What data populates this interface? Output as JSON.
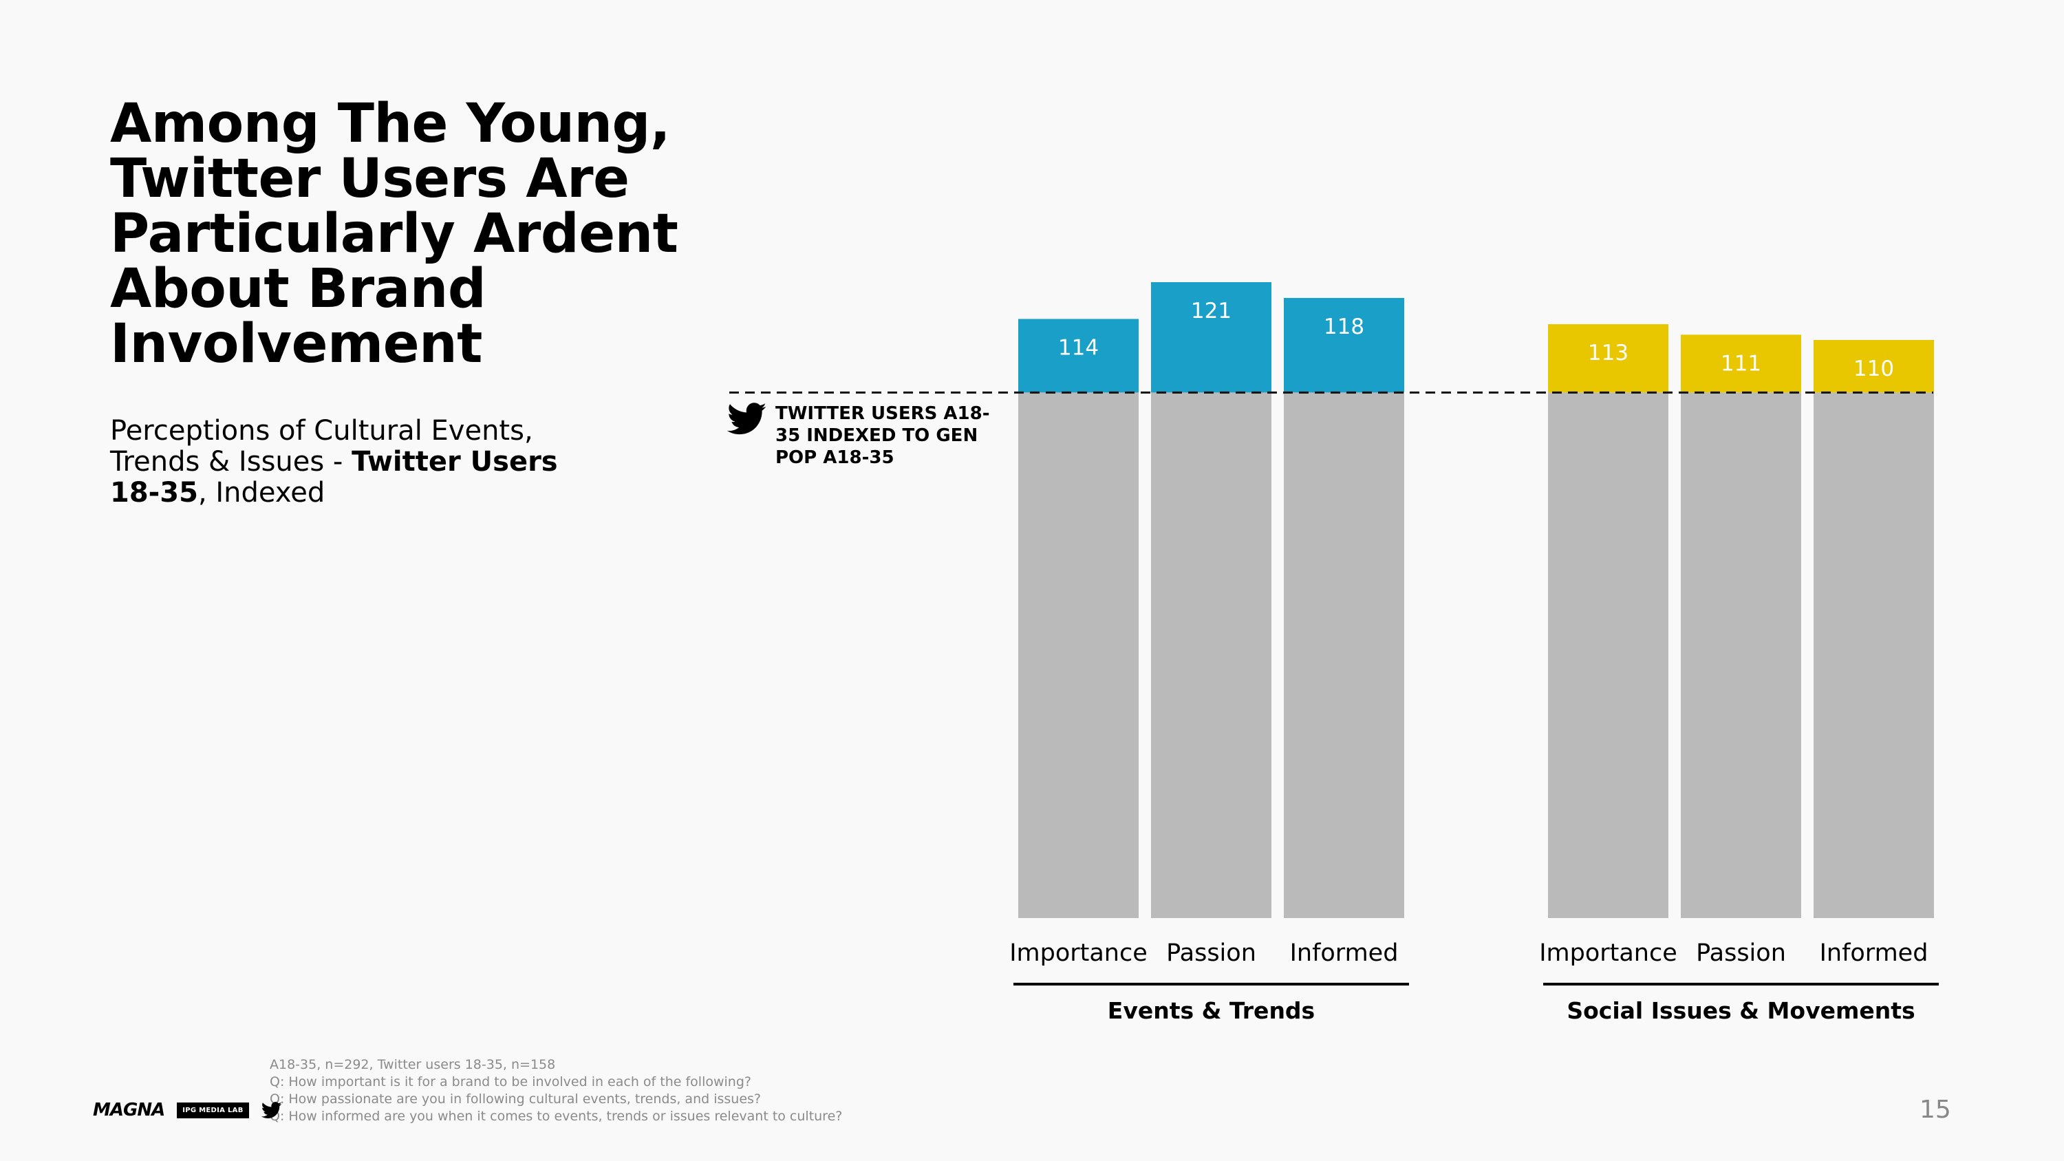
{
  "slide": {
    "title": "Among The Young, Twitter Users Are Particularly Ardent About Brand Involvement",
    "subtitle_part1": "Perceptions of Cultural Events, Trends & Issues - ",
    "subtitle_bold": "Twitter Users 18-35",
    "subtitle_part2": ", Indexed",
    "baseline_label": "TWITTER USERS A18-35 INDEXED TO GEN POP A18-35",
    "footer_notes": [
      "A18-35, n=292, Twitter users 18-35, n=158",
      "Q: How important is it for a brand to be involved in each of the following?",
      "Q: How passionate are you in following cultural events, trends, and issues?",
      "Q: How informed are you when it comes to events, trends or issues relevant to culture?"
    ],
    "logo_magna": "MAGNA",
    "logo_ipg": "IPG MEDIA LAB",
    "page_number": "15"
  },
  "chart_data": {
    "type": "bar",
    "baseline": 100,
    "ylim": [
      0,
      121
    ],
    "colors": {
      "base": "#bababa",
      "events": "#1a9fc9",
      "social": "#e8c600",
      "events_label": "#ffffff",
      "social_label": "#ffffff"
    },
    "groups": [
      {
        "name": "Events & Trends",
        "color_key": "events",
        "categories": [
          "Importance",
          "Passion",
          "Informed"
        ],
        "values": [
          114,
          121,
          118
        ]
      },
      {
        "name": "Social Issues & Movements",
        "color_key": "social",
        "categories": [
          "Importance",
          "Passion",
          "Informed"
        ],
        "values": [
          113,
          111,
          110
        ]
      }
    ]
  }
}
